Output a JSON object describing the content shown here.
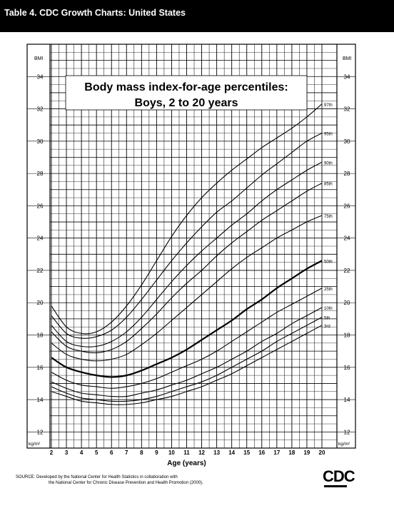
{
  "header": {
    "title": "Table 4. CDC Growth Charts: United States"
  },
  "chart_data": {
    "type": "line",
    "title": "Body mass index-for-age percentiles:",
    "subtitle": "Boys, 2 to 20 years",
    "xlabel": "Age (years)",
    "ylabel": "BMI",
    "unit_label": "kg/m²",
    "xlim": [
      2,
      20
    ],
    "ylim": [
      11,
      36
    ],
    "x_ticks": [
      2,
      3,
      4,
      5,
      6,
      7,
      8,
      9,
      10,
      11,
      12,
      13,
      14,
      15,
      16,
      17,
      18,
      19,
      20
    ],
    "y_ticks": [
      12,
      14,
      16,
      18,
      20,
      22,
      24,
      26,
      28,
      30,
      32,
      34
    ],
    "grid": true,
    "x": [
      2,
      3,
      4,
      5,
      6,
      7,
      8,
      9,
      10,
      11,
      12,
      13,
      14,
      15,
      16,
      17,
      18,
      19,
      20
    ],
    "series": [
      {
        "name": "97th",
        "values": [
          19.8,
          18.5,
          18.1,
          18.2,
          18.8,
          19.8,
          21.1,
          22.6,
          24.1,
          25.4,
          26.5,
          27.4,
          28.2,
          28.9,
          29.6,
          30.2,
          30.8,
          31.5,
          32.3
        ]
      },
      {
        "name": "95th",
        "values": [
          19.2,
          18.1,
          17.8,
          17.9,
          18.3,
          19.1,
          20.2,
          21.4,
          22.6,
          23.7,
          24.7,
          25.6,
          26.3,
          27.1,
          27.9,
          28.6,
          29.3,
          30.0,
          30.5
        ]
      },
      {
        "name": "90th",
        "values": [
          18.6,
          17.6,
          17.3,
          17.3,
          17.6,
          18.2,
          19.1,
          20.2,
          21.3,
          22.3,
          23.2,
          24.0,
          24.8,
          25.5,
          26.3,
          27.0,
          27.6,
          28.2,
          28.7
        ]
      },
      {
        "name": "85th",
        "values": [
          18.2,
          17.3,
          17.0,
          16.9,
          17.1,
          17.6,
          18.4,
          19.3,
          20.3,
          21.2,
          22.0,
          22.9,
          23.7,
          24.4,
          25.1,
          25.7,
          26.3,
          26.9,
          27.4
        ]
      },
      {
        "name": "75th",
        "values": [
          17.5,
          16.8,
          16.5,
          16.4,
          16.5,
          16.8,
          17.4,
          18.1,
          18.9,
          19.7,
          20.5,
          21.3,
          22.1,
          22.8,
          23.4,
          24.0,
          24.5,
          25.0,
          25.4
        ]
      },
      {
        "name": "50th",
        "values": [
          16.6,
          16.0,
          15.7,
          15.5,
          15.4,
          15.5,
          15.8,
          16.2,
          16.6,
          17.1,
          17.7,
          18.3,
          18.9,
          19.6,
          20.2,
          20.9,
          21.5,
          22.1,
          22.6
        ]
      },
      {
        "name": "25th",
        "values": [
          15.7,
          15.2,
          14.9,
          14.8,
          14.7,
          14.8,
          15.0,
          15.3,
          15.7,
          16.1,
          16.5,
          17.0,
          17.6,
          18.2,
          18.8,
          19.4,
          19.9,
          20.4,
          20.9
        ]
      },
      {
        "name": "10th",
        "values": [
          15.1,
          14.7,
          14.4,
          14.3,
          14.2,
          14.2,
          14.4,
          14.6,
          14.9,
          15.2,
          15.6,
          16.0,
          16.5,
          17.0,
          17.6,
          18.1,
          18.7,
          19.2,
          19.7
        ]
      },
      {
        "name": "5th",
        "values": [
          14.8,
          14.4,
          14.1,
          14.0,
          13.9,
          13.9,
          14.0,
          14.2,
          14.5,
          14.8,
          15.1,
          15.5,
          16.0,
          16.5,
          17.0,
          17.6,
          18.1,
          18.6,
          19.1
        ]
      },
      {
        "name": "3rd",
        "values": [
          14.5,
          14.2,
          13.9,
          13.8,
          13.7,
          13.7,
          13.8,
          14.0,
          14.2,
          14.5,
          14.8,
          15.2,
          15.6,
          16.1,
          16.6,
          17.1,
          17.6,
          18.1,
          18.6
        ]
      }
    ]
  },
  "footer": {
    "source_line1": "SOURCE: Developed by the National Center for Health Statistics in collaboration with",
    "source_line2": "the National Center for Chronic Disease Prevention and Health Promotion (2000).",
    "logo_text": "CDC"
  }
}
